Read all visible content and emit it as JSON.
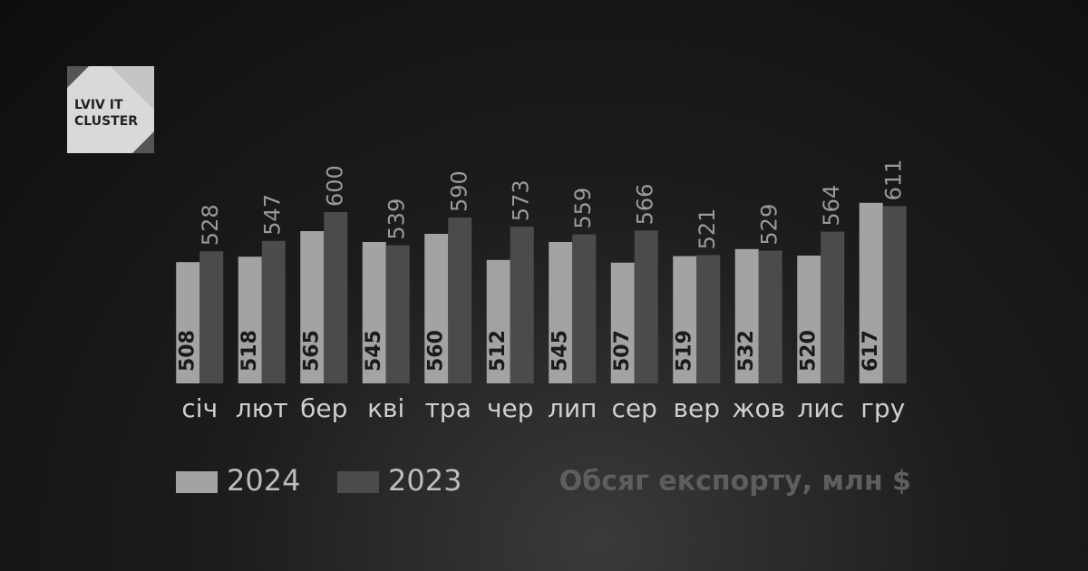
{
  "logo": {
    "lines": [
      "LVIV IT",
      "CLUSTER"
    ]
  },
  "chart_data": {
    "type": "bar",
    "subtitle": "Обсяг експорту, млн $",
    "categories": [
      "січ",
      "лют",
      "бер",
      "кві",
      "тра",
      "чер",
      "лип",
      "сер",
      "вер",
      "жов",
      "лис",
      "гру"
    ],
    "series": [
      {
        "name": "2024",
        "color": "#a3a3a3",
        "values": [
          508,
          518,
          565,
          545,
          560,
          512,
          545,
          507,
          519,
          532,
          520,
          617
        ]
      },
      {
        "name": "2023",
        "color": "#4b4b4b",
        "values": [
          528,
          547,
          600,
          539,
          590,
          573,
          559,
          566,
          521,
          529,
          564,
          611
        ]
      }
    ],
    "ylim": [
      285,
      650
    ]
  }
}
